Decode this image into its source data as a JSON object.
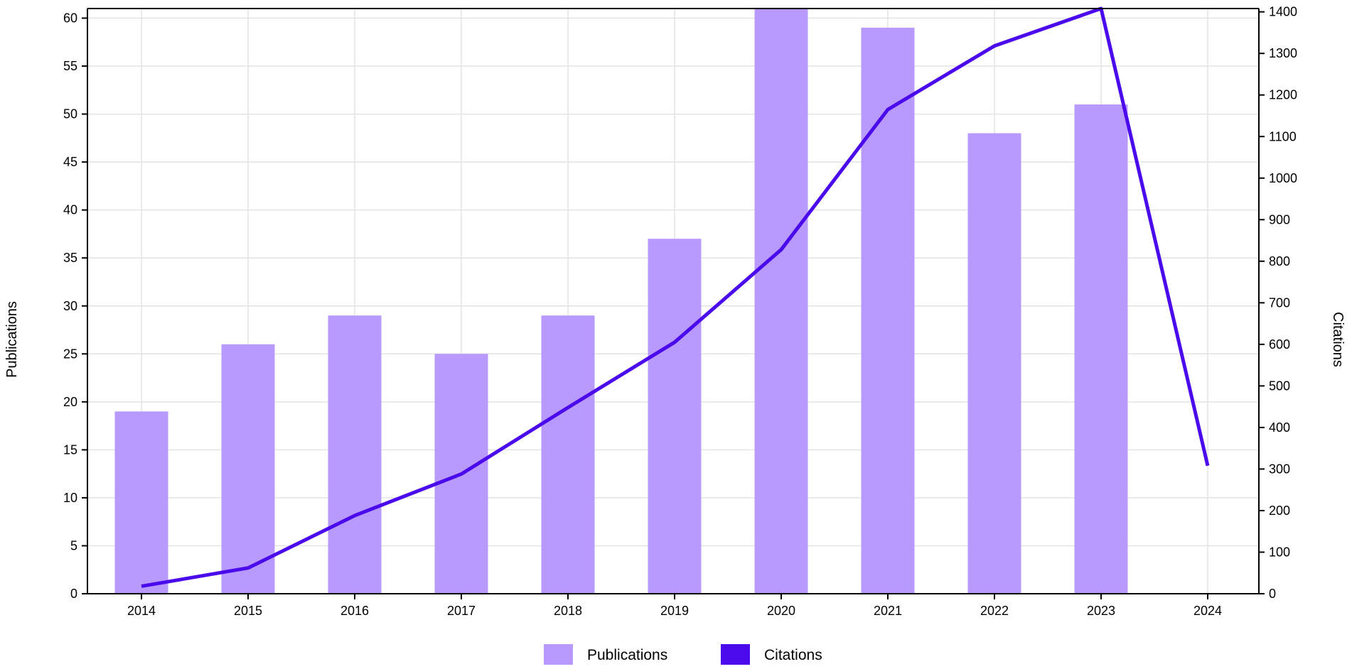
{
  "chart_data": {
    "type": "bar",
    "categories": [
      "2014",
      "2015",
      "2016",
      "2017",
      "2018",
      "2019",
      "2020",
      "2021",
      "2022",
      "2023",
      "2024"
    ],
    "series": [
      {
        "name": "Publications",
        "type": "bar",
        "axis": "left",
        "color": "#b89aff",
        "values": [
          19,
          26,
          29,
          25,
          29,
          37,
          61,
          59,
          48,
          51,
          null
        ]
      },
      {
        "name": "Citations",
        "type": "line",
        "axis": "right",
        "color": "#4a0aec",
        "values": [
          18,
          62,
          188,
          288,
          448,
          605,
          828,
          1165,
          1318,
          1408,
          308
        ]
      }
    ],
    "y_left": {
      "label": "Publications",
      "range": [
        0,
        61
      ],
      "ticks": [
        "0",
        "5",
        "10",
        "15",
        "20",
        "25",
        "30",
        "35",
        "40",
        "45",
        "50",
        "55",
        "60"
      ]
    },
    "y_right": {
      "label": "Citations",
      "range": [
        0,
        1408
      ],
      "ticks": [
        "0",
        "100",
        "200",
        "300",
        "400",
        "500",
        "600",
        "700",
        "800",
        "900",
        "1000",
        "1100",
        "1200",
        "1300",
        "1400"
      ]
    },
    "grid": true,
    "legend_position": "bottom-center"
  }
}
